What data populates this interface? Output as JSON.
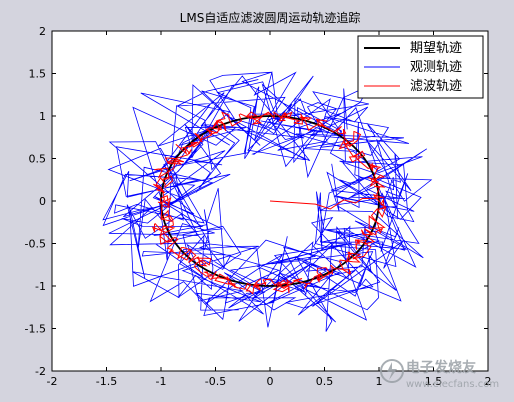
{
  "figure_background": "#d4d4de",
  "chart_data": {
    "type": "line",
    "title": "LMS自适应滤波圆周运动轨迹追踪",
    "xlabel": "",
    "ylabel": "",
    "xlim": [
      -2,
      2
    ],
    "ylim": [
      -2,
      2
    ],
    "xticks": [
      "-2",
      "-1.5",
      "-1",
      "-0.5",
      "0",
      "0.5",
      "1",
      "1.5",
      "2"
    ],
    "yticks": [
      "2",
      "1.5",
      "1",
      "0.5",
      "0",
      "-0.5",
      "-1",
      "-1.5",
      "-2"
    ],
    "grid": false,
    "legend_position": "top-right",
    "series": [
      {
        "name": "期望轨迹",
        "color": "#000000",
        "description": "unit circle, radius 1 centered at (0,0)",
        "radius": 1.0,
        "points": 72
      },
      {
        "name": "观测轨迹",
        "color": "#0000ff",
        "description": "noisy observations around the unit circle, noise amplitude about ±0.55",
        "radius": 1.0,
        "noise_amplitude": 0.55,
        "points": 400
      },
      {
        "name": "滤波轨迹",
        "color": "#ff0000",
        "description": "LMS filtered trajectory starting at (0,0), converging to the unit circle",
        "start": [
          0,
          0
        ],
        "radius": 1.0,
        "noise_amplitude": 0.08,
        "points": 400
      }
    ]
  },
  "watermark": {
    "text": "电子发烧友",
    "url_text": "www.elecfans.com"
  }
}
